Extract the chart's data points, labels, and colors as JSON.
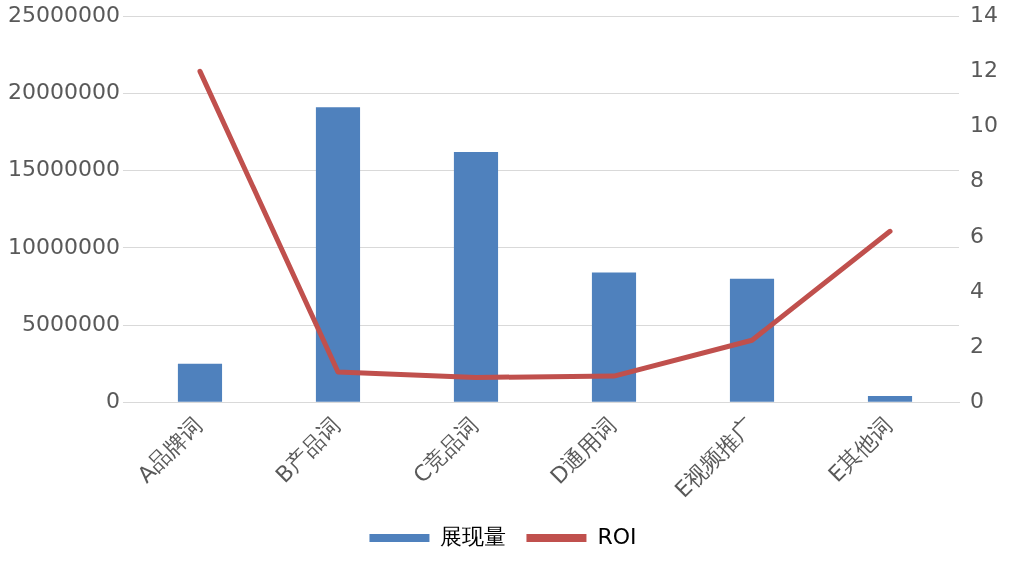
{
  "chart_data": {
    "type": "bar",
    "categories": [
      "A品牌词",
      "B产品词",
      "C竞品词",
      "D通用词",
      "E视频推广",
      "E其他词"
    ],
    "series": [
      {
        "name": "展现量",
        "color": "#4f81bd",
        "values": [
          2500000,
          19100000,
          16200000,
          8400000,
          8000000,
          400000
        ]
      },
      {
        "name": "ROI",
        "type": "line",
        "axis": "y2",
        "color": "#c0504d",
        "values": [
          12,
          1.1,
          0.9,
          0.95,
          2.25,
          6.2
        ]
      }
    ],
    "ylim": [
      0,
      25000000
    ],
    "yticks": [
      0,
      5000000,
      10000000,
      15000000,
      20000000,
      25000000
    ],
    "y2lim": [
      0,
      14
    ],
    "y2ticks": [
      0,
      2,
      4,
      6,
      8,
      10,
      12,
      14
    ],
    "grid": "y",
    "legend": "bottom",
    "marker": "none"
  }
}
